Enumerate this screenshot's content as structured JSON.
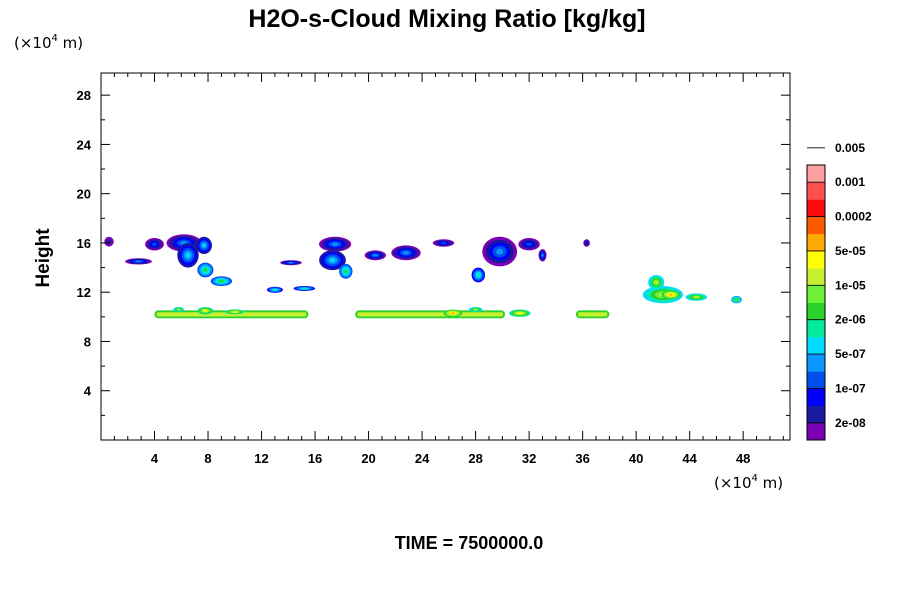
{
  "chart_data": {
    "type": "contour",
    "title": "H2O-s-Cloud Mixing Ratio [kg/kg]",
    "ylabel": "Height",
    "x_unit": {
      "base": "(×10",
      "exp": "4",
      "tail": " m)"
    },
    "y_unit": {
      "base": "(×10",
      "exp": "4",
      "tail": " m)"
    },
    "xlim": [
      0,
      51.5
    ],
    "ylim": [
      0,
      29.8
    ],
    "xticks": [
      4,
      8,
      12,
      16,
      20,
      24,
      28,
      32,
      36,
      40,
      44,
      48
    ],
    "xtick_labels": [
      "4",
      "8",
      "12",
      "16",
      "20",
      "24",
      "28",
      "32",
      "36",
      "40",
      "44",
      "48"
    ],
    "yticks": [
      4,
      8,
      12,
      16,
      20,
      24,
      28
    ],
    "ytick_labels": [
      "4",
      "8",
      "12",
      "16",
      "20",
      "24",
      "28"
    ],
    "footer": "TIME = 7500000.0",
    "legend": {
      "colors": [
        "#7a00b4",
        "#1a1aa0",
        "#0000ff",
        "#0050f0",
        "#0a96ff",
        "#00dcff",
        "#00eba0",
        "#2bd12b",
        "#6ef036",
        "#c8f032",
        "#ffff00",
        "#ffaa00",
        "#ff5a00",
        "#ff0a0a",
        "#ff5050",
        "#ffa0a0"
      ],
      "labels": [
        "2e-08",
        "1e-07",
        "5e-07",
        "2e-06",
        "1e-05",
        "5e-05",
        "0.0002",
        "0.001",
        "0.005"
      ]
    },
    "cloud_features": [
      {
        "type": "blob",
        "x": 0.6,
        "y": 16.1,
        "rx": 0.35,
        "ry": 0.4,
        "level": 1
      },
      {
        "type": "blob",
        "x": 2.8,
        "y": 14.5,
        "rx": 1.0,
        "ry": 0.25,
        "level": 4
      },
      {
        "type": "blob",
        "x": 4.0,
        "y": 15.9,
        "rx": 0.7,
        "ry": 0.5,
        "level": 3
      },
      {
        "type": "blob",
        "x": 6.2,
        "y": 16.0,
        "rx": 1.3,
        "ry": 0.7,
        "level": 4
      },
      {
        "type": "blob",
        "x": 6.5,
        "y": 15.0,
        "rx": 0.8,
        "ry": 1.0,
        "level": 5
      },
      {
        "type": "blob",
        "x": 7.7,
        "y": 15.8,
        "rx": 0.6,
        "ry": 0.7,
        "level": 5
      },
      {
        "type": "blob",
        "x": 7.8,
        "y": 13.8,
        "rx": 0.6,
        "ry": 0.6,
        "level": 7
      },
      {
        "type": "blob",
        "x": 9.0,
        "y": 12.9,
        "rx": 0.8,
        "ry": 0.4,
        "level": 7
      },
      {
        "type": "blob",
        "x": 14.2,
        "y": 14.4,
        "rx": 0.8,
        "ry": 0.2,
        "level": 4
      },
      {
        "type": "blob",
        "x": 13.0,
        "y": 12.2,
        "rx": 0.6,
        "ry": 0.25,
        "level": 6
      },
      {
        "type": "blob",
        "x": 15.2,
        "y": 12.3,
        "rx": 0.8,
        "ry": 0.2,
        "level": 6
      },
      {
        "type": "blob",
        "x": 17.5,
        "y": 15.9,
        "rx": 1.2,
        "ry": 0.6,
        "level": 4
      },
      {
        "type": "blob",
        "x": 17.3,
        "y": 14.6,
        "rx": 1.0,
        "ry": 0.8,
        "level": 5
      },
      {
        "type": "blob",
        "x": 18.3,
        "y": 13.7,
        "rx": 0.5,
        "ry": 0.6,
        "level": 7
      },
      {
        "type": "blob",
        "x": 20.5,
        "y": 15.0,
        "rx": 0.8,
        "ry": 0.4,
        "level": 4
      },
      {
        "type": "blob",
        "x": 22.8,
        "y": 15.2,
        "rx": 1.1,
        "ry": 0.6,
        "level": 4
      },
      {
        "type": "blob",
        "x": 25.6,
        "y": 16.0,
        "rx": 0.8,
        "ry": 0.3,
        "level": 3
      },
      {
        "type": "blob",
        "x": 29.8,
        "y": 15.3,
        "rx": 1.3,
        "ry": 1.2,
        "level": 4
      },
      {
        "type": "blob",
        "x": 28.2,
        "y": 13.4,
        "rx": 0.5,
        "ry": 0.6,
        "level": 6
      },
      {
        "type": "blob",
        "x": 32.0,
        "y": 15.9,
        "rx": 0.8,
        "ry": 0.5,
        "level": 3
      },
      {
        "type": "blob",
        "x": 33.0,
        "y": 15.0,
        "rx": 0.3,
        "ry": 0.5,
        "level": 4
      },
      {
        "type": "blob",
        "x": 36.3,
        "y": 16.0,
        "rx": 0.25,
        "ry": 0.3,
        "level": 2
      },
      {
        "type": "band",
        "x1": 4.0,
        "x2": 15.5,
        "y": 10.2,
        "level": 8
      },
      {
        "type": "blob",
        "x": 5.8,
        "y": 10.6,
        "rx": 0.4,
        "ry": 0.2,
        "level": 9
      },
      {
        "type": "blob",
        "x": 7.8,
        "y": 10.5,
        "rx": 0.6,
        "ry": 0.3,
        "level": 10
      },
      {
        "type": "blob",
        "x": 10.0,
        "y": 10.4,
        "rx": 0.7,
        "ry": 0.2,
        "level": 10
      },
      {
        "type": "band",
        "x1": 19.0,
        "x2": 30.2,
        "y": 10.2,
        "level": 8
      },
      {
        "type": "blob",
        "x": 26.3,
        "y": 10.3,
        "rx": 0.7,
        "ry": 0.3,
        "level": 11
      },
      {
        "type": "blob",
        "x": 28.0,
        "y": 10.6,
        "rx": 0.5,
        "ry": 0.2,
        "level": 9
      },
      {
        "type": "blob",
        "x": 31.3,
        "y": 10.3,
        "rx": 0.8,
        "ry": 0.3,
        "level": 10
      },
      {
        "type": "band",
        "x1": 35.5,
        "x2": 38.0,
        "y": 10.2,
        "level": 8
      },
      {
        "type": "blob",
        "x": 42.0,
        "y": 11.8,
        "rx": 1.5,
        "ry": 0.7,
        "level": 9
      },
      {
        "type": "blob",
        "x": 41.5,
        "y": 12.8,
        "rx": 0.6,
        "ry": 0.6,
        "level": 9
      },
      {
        "type": "blob",
        "x": 42.6,
        "y": 11.8,
        "rx": 0.7,
        "ry": 0.35,
        "level": 11
      },
      {
        "type": "blob",
        "x": 44.5,
        "y": 11.6,
        "rx": 0.8,
        "ry": 0.3,
        "level": 9
      },
      {
        "type": "blob",
        "x": 47.5,
        "y": 11.4,
        "rx": 0.4,
        "ry": 0.3,
        "level": 8
      }
    ]
  }
}
